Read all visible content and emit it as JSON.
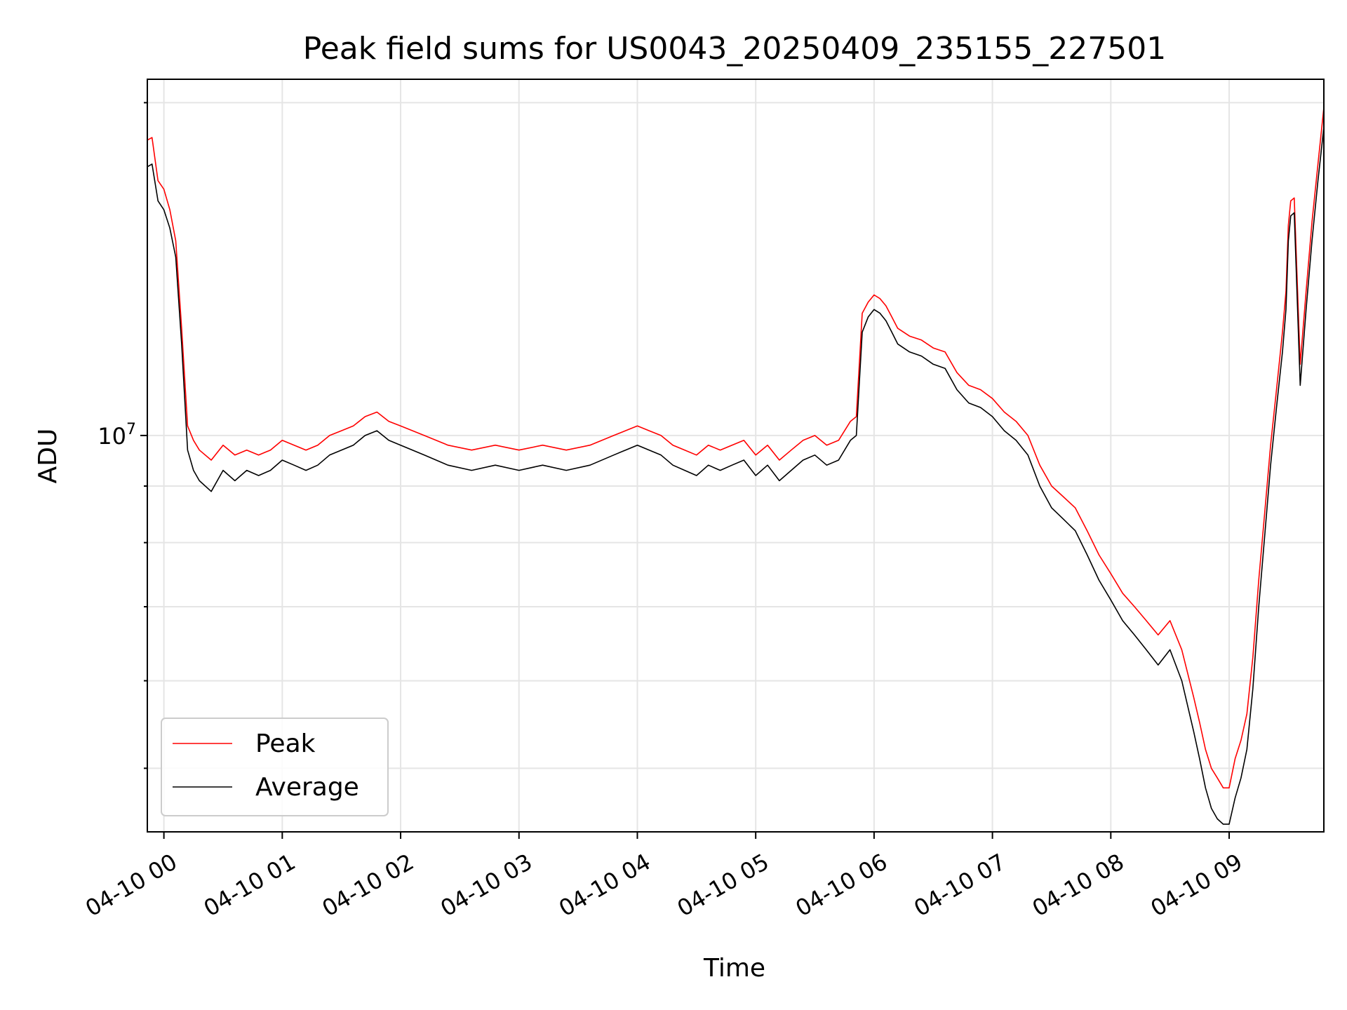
{
  "chart_data": {
    "type": "line",
    "title": "Peak field sums for US0043_20250409_235155_227501",
    "xlabel": "Time",
    "ylabel": "ADU",
    "yscale": "log",
    "grid": true,
    "legend_position": "lower-left",
    "x_ticks": [
      "04-10 00",
      "04-10 01",
      "04-10 02",
      "04-10 03",
      "04-10 04",
      "04-10 05",
      "04-10 06",
      "04-10 07",
      "04-10 08",
      "04-10 09"
    ],
    "x_tick_hours": [
      0,
      1,
      2,
      3,
      4,
      5,
      6,
      7,
      8,
      9
    ],
    "xlim_hours": [
      -0.14,
      9.8
    ],
    "ylim": [
      4380000,
      21000000
    ],
    "y_major_tick": {
      "value": 10000000,
      "label_base": "10",
      "label_exponent": "7"
    },
    "y_minor_ticks": [
      5000000,
      6000000,
      7000000,
      8000000,
      9000000,
      20000000
    ],
    "series": [
      {
        "name": "Peak",
        "color": "#ff0000",
        "x_hours": [
          -0.14,
          -0.1,
          -0.05,
          0.0,
          0.05,
          0.1,
          0.15,
          0.2,
          0.25,
          0.3,
          0.4,
          0.5,
          0.6,
          0.7,
          0.8,
          0.9,
          1.0,
          1.1,
          1.2,
          1.3,
          1.4,
          1.5,
          1.6,
          1.7,
          1.8,
          1.9,
          2.0,
          2.2,
          2.4,
          2.6,
          2.8,
          3.0,
          3.2,
          3.4,
          3.6,
          3.8,
          4.0,
          4.1,
          4.2,
          4.3,
          4.4,
          4.5,
          4.6,
          4.7,
          4.8,
          4.9,
          5.0,
          5.1,
          5.2,
          5.3,
          5.4,
          5.5,
          5.6,
          5.7,
          5.8,
          5.85,
          5.9,
          5.95,
          6.0,
          6.05,
          6.1,
          6.15,
          6.2,
          6.3,
          6.4,
          6.5,
          6.6,
          6.7,
          6.8,
          6.9,
          7.0,
          7.1,
          7.2,
          7.3,
          7.4,
          7.5,
          7.6,
          7.7,
          7.8,
          7.9,
          8.0,
          8.1,
          8.2,
          8.3,
          8.4,
          8.5,
          8.6,
          8.7,
          8.75,
          8.8,
          8.85,
          8.9,
          8.95,
          9.0,
          9.05,
          9.1,
          9.15,
          9.2,
          9.25,
          9.3,
          9.35,
          9.4,
          9.45,
          9.48,
          9.5,
          9.52,
          9.55,
          9.6,
          9.65,
          9.7,
          9.75,
          9.8
        ],
        "values": [
          18500000,
          18600000,
          17000000,
          16700000,
          16000000,
          15000000,
          12500000,
          10200000,
          9900000,
          9700000,
          9500000,
          9800000,
          9600000,
          9700000,
          9600000,
          9700000,
          9900000,
          9800000,
          9700000,
          9800000,
          10000000,
          10100000,
          10200000,
          10400000,
          10500000,
          10300000,
          10200000,
          10000000,
          9800000,
          9700000,
          9800000,
          9700000,
          9800000,
          9700000,
          9800000,
          10000000,
          10200000,
          10100000,
          10000000,
          9800000,
          9700000,
          9600000,
          9800000,
          9700000,
          9800000,
          9900000,
          9600000,
          9800000,
          9500000,
          9700000,
          9900000,
          10000000,
          9800000,
          9900000,
          10300000,
          10400000,
          12900000,
          13200000,
          13400000,
          13300000,
          13100000,
          12800000,
          12500000,
          12300000,
          12200000,
          12000000,
          11900000,
          11400000,
          11100000,
          11000000,
          10800000,
          10500000,
          10300000,
          10000000,
          9400000,
          9000000,
          8800000,
          8600000,
          8200000,
          7800000,
          7500000,
          7200000,
          7000000,
          6800000,
          6600000,
          6800000,
          6400000,
          5800000,
          5500000,
          5200000,
          5000000,
          4900000,
          4800000,
          4800000,
          5100000,
          5300000,
          5600000,
          6300000,
          7400000,
          8500000,
          9800000,
          11000000,
          12400000,
          13500000,
          15500000,
          16300000,
          16400000,
          11600000,
          13500000,
          15600000,
          17600000,
          19800000
        ]
      },
      {
        "name": "Average",
        "color": "#000000",
        "x_hours": [
          -0.14,
          -0.1,
          -0.05,
          0.0,
          0.05,
          0.1,
          0.15,
          0.2,
          0.25,
          0.3,
          0.4,
          0.5,
          0.6,
          0.7,
          0.8,
          0.9,
          1.0,
          1.1,
          1.2,
          1.3,
          1.4,
          1.5,
          1.6,
          1.7,
          1.8,
          1.9,
          2.0,
          2.2,
          2.4,
          2.6,
          2.8,
          3.0,
          3.2,
          3.4,
          3.6,
          3.8,
          4.0,
          4.1,
          4.2,
          4.3,
          4.4,
          4.5,
          4.6,
          4.7,
          4.8,
          4.9,
          5.0,
          5.1,
          5.2,
          5.3,
          5.4,
          5.5,
          5.6,
          5.7,
          5.8,
          5.85,
          5.9,
          5.95,
          6.0,
          6.05,
          6.1,
          6.15,
          6.2,
          6.3,
          6.4,
          6.5,
          6.6,
          6.7,
          6.8,
          6.9,
          7.0,
          7.1,
          7.2,
          7.3,
          7.4,
          7.5,
          7.6,
          7.7,
          7.8,
          7.9,
          8.0,
          8.1,
          8.2,
          8.3,
          8.4,
          8.5,
          8.6,
          8.7,
          8.75,
          8.8,
          8.85,
          8.9,
          8.95,
          9.0,
          9.05,
          9.1,
          9.15,
          9.2,
          9.25,
          9.3,
          9.35,
          9.4,
          9.45,
          9.48,
          9.5,
          9.52,
          9.55,
          9.6,
          9.65,
          9.7,
          9.75,
          9.8
        ],
        "values": [
          17500000,
          17600000,
          16300000,
          16000000,
          15400000,
          14500000,
          12100000,
          9700000,
          9300000,
          9100000,
          8900000,
          9300000,
          9100000,
          9300000,
          9200000,
          9300000,
          9500000,
          9400000,
          9300000,
          9400000,
          9600000,
          9700000,
          9800000,
          10000000,
          10100000,
          9900000,
          9800000,
          9600000,
          9400000,
          9300000,
          9400000,
          9300000,
          9400000,
          9300000,
          9400000,
          9600000,
          9800000,
          9700000,
          9600000,
          9400000,
          9300000,
          9200000,
          9400000,
          9300000,
          9400000,
          9500000,
          9200000,
          9400000,
          9100000,
          9300000,
          9500000,
          9600000,
          9400000,
          9500000,
          9900000,
          10000000,
          12400000,
          12800000,
          13000000,
          12900000,
          12700000,
          12400000,
          12100000,
          11900000,
          11800000,
          11600000,
          11500000,
          11000000,
          10700000,
          10600000,
          10400000,
          10100000,
          9900000,
          9600000,
          9000000,
          8600000,
          8400000,
          8200000,
          7800000,
          7400000,
          7100000,
          6800000,
          6600000,
          6400000,
          6200000,
          6400000,
          6000000,
          5400000,
          5100000,
          4800000,
          4600000,
          4500000,
          4450000,
          4450000,
          4700000,
          4900000,
          5200000,
          5900000,
          7000000,
          8100000,
          9400000,
          10600000,
          11900000,
          13000000,
          15000000,
          15800000,
          15900000,
          11100000,
          13000000,
          15000000,
          17000000,
          19000000
        ]
      }
    ]
  }
}
